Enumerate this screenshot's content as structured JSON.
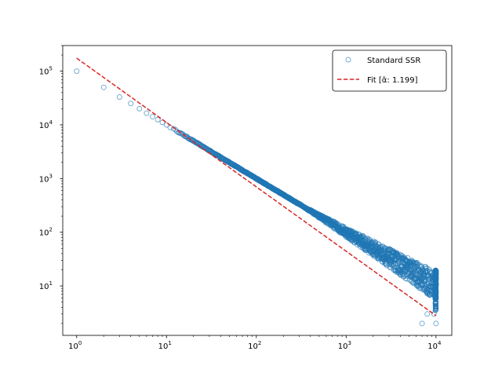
{
  "chart_data": {
    "type": "scatter",
    "title": "",
    "xlabel": "",
    "ylabel": "",
    "xscale": "log",
    "yscale": "log",
    "xlim": [
      0.7,
      15000
    ],
    "ylim": [
      1.2,
      300000
    ],
    "grid": false,
    "legend_position": "top-right",
    "x_ticks": [
      {
        "value": 1,
        "base": "10",
        "exp": "0"
      },
      {
        "value": 10,
        "base": "10",
        "exp": "1"
      },
      {
        "value": 100,
        "base": "10",
        "exp": "2"
      },
      {
        "value": 1000,
        "base": "10",
        "exp": "3"
      },
      {
        "value": 10000,
        "base": "10",
        "exp": "4"
      }
    ],
    "y_ticks": [
      {
        "value": 10,
        "base": "10",
        "exp": "1"
      },
      {
        "value": 100,
        "base": "10",
        "exp": "2"
      },
      {
        "value": 1000,
        "base": "10",
        "exp": "3"
      },
      {
        "value": 10000,
        "base": "10",
        "exp": "4"
      },
      {
        "value": 100000,
        "base": "10",
        "exp": "5"
      }
    ],
    "series": [
      {
        "name": "Standard SSR",
        "kind": "scatter",
        "color": "#1f77b4",
        "marker": "open-circle",
        "rank_range": [
          1,
          10000
        ],
        "trend_exponent": 1.0,
        "max_count": 100000,
        "points": [
          [
            1,
            100000
          ],
          [
            2,
            50000
          ],
          [
            3,
            33000
          ],
          [
            4,
            25000
          ],
          [
            5,
            20000
          ],
          [
            6,
            16500
          ],
          [
            7,
            14200
          ],
          [
            8,
            12500
          ],
          [
            9,
            11100
          ],
          [
            10,
            10000
          ],
          [
            7000,
            2
          ],
          [
            10000,
            2
          ],
          [
            8000,
            3
          ],
          [
            9500,
            3
          ]
        ]
      },
      {
        "name": "Fit [α̂: 1.199]",
        "kind": "line",
        "color": "#d62728",
        "style": "dashed",
        "alpha": 1.199,
        "x": [
          1,
          10000
        ],
        "y": [
          175000,
          2.8
        ]
      }
    ]
  }
}
